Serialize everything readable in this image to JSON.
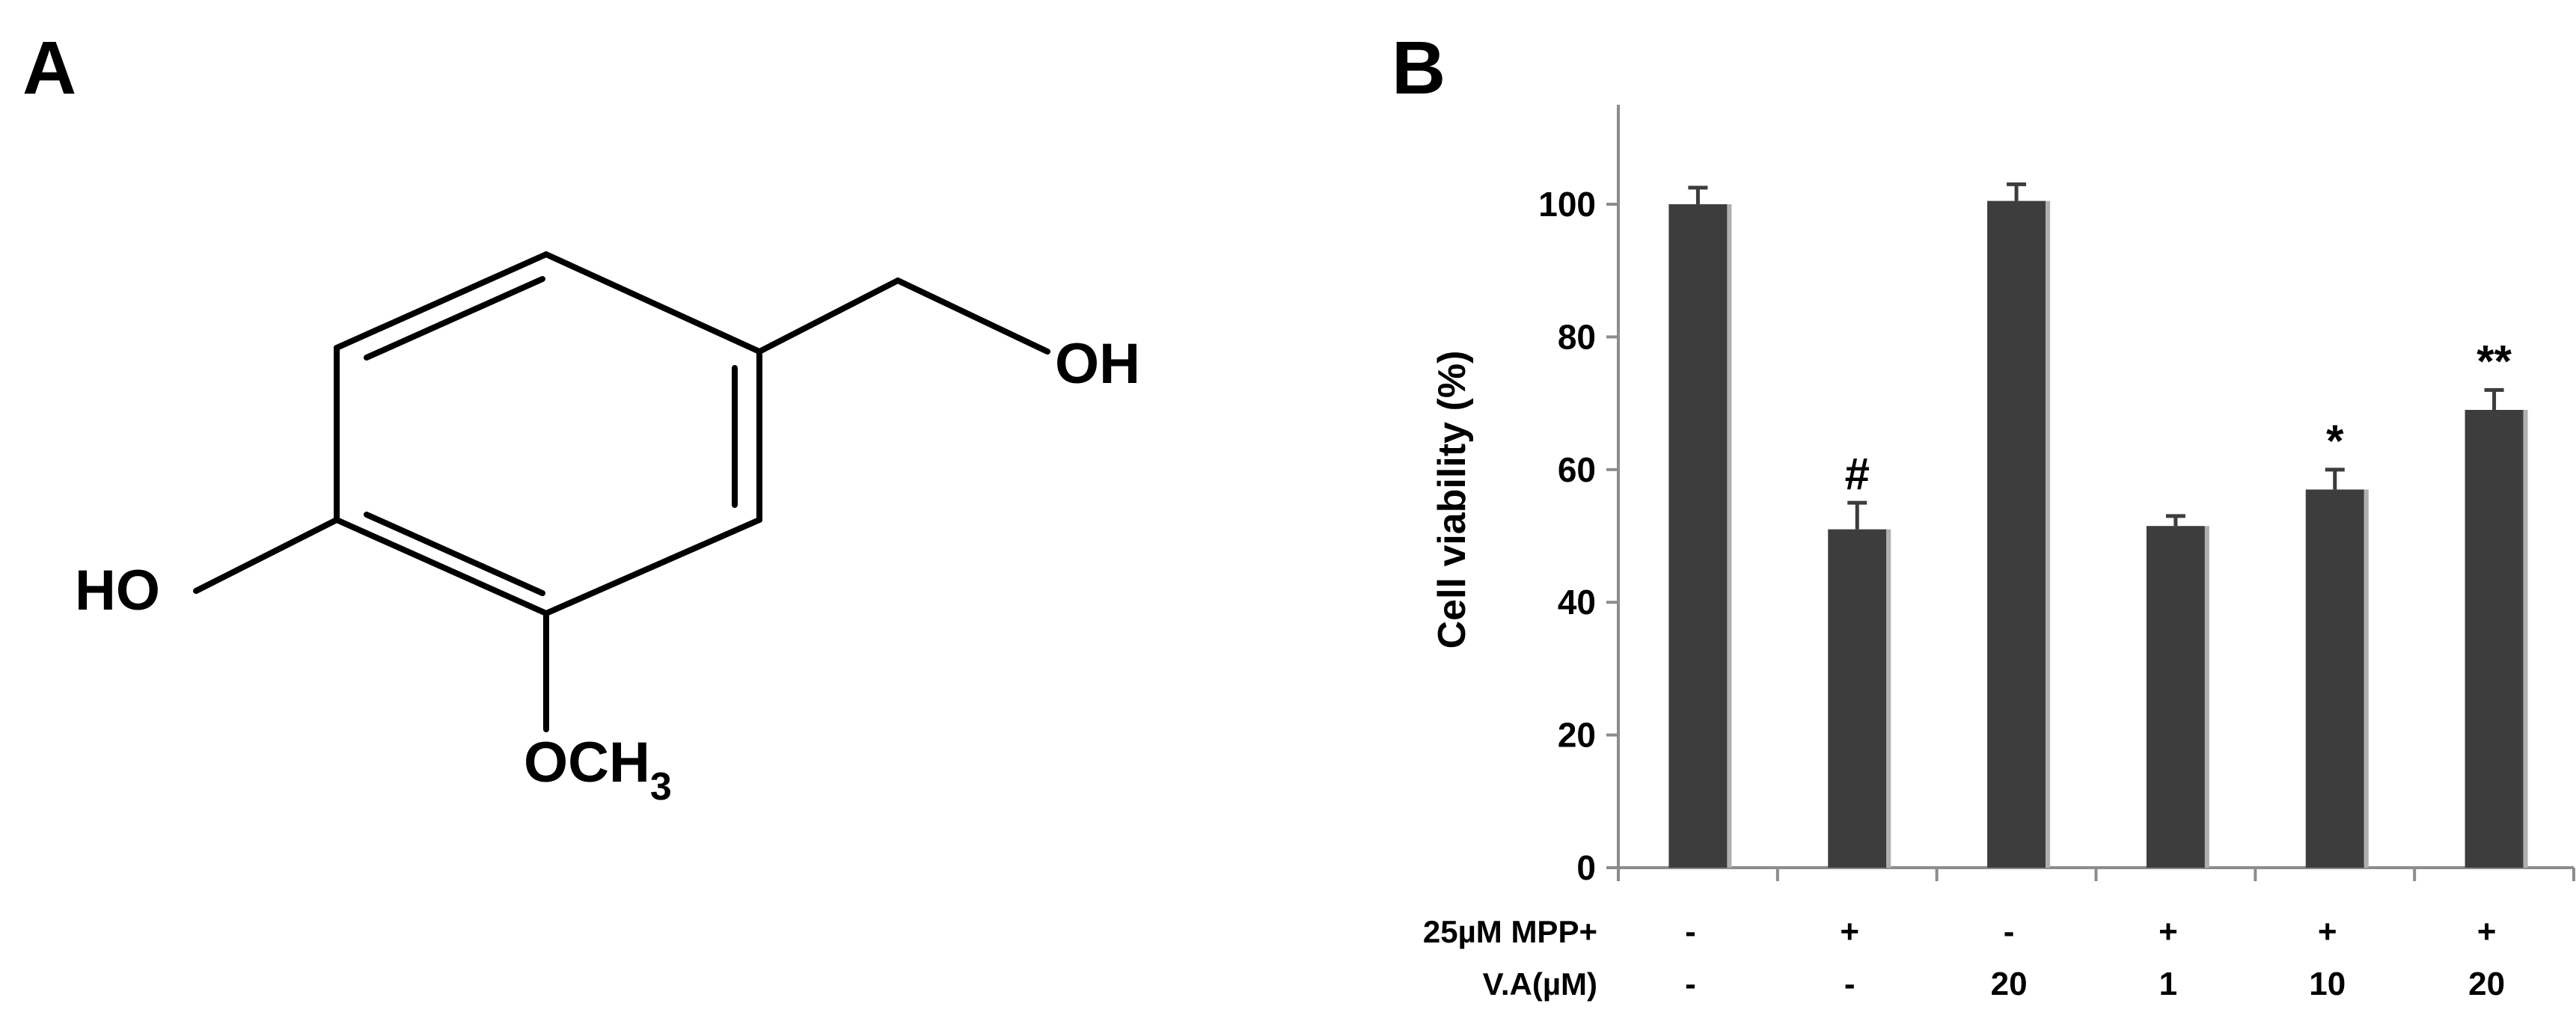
{
  "panels": {
    "a_label": "A",
    "b_label": "B"
  },
  "structure": {
    "oh_right": "OH",
    "ho_left": "HO",
    "methoxy_main": "OCH",
    "methoxy_sub": "3"
  },
  "chart_data": {
    "type": "bar",
    "title": "",
    "xlabel": "",
    "ylabel": "Cell viability (%)",
    "ylim": [
      0,
      115
    ],
    "yticks": [
      0,
      20,
      40,
      60,
      80,
      100
    ],
    "bar_color": "#3d3d3d",
    "categories": [
      "1",
      "2",
      "3",
      "4",
      "5",
      "6"
    ],
    "values": [
      100,
      51,
      100.5,
      51.5,
      57,
      69
    ],
    "errors": [
      2.5,
      4,
      2.5,
      1.5,
      3,
      3
    ],
    "annotations": [
      "",
      "#",
      "",
      "",
      "*",
      "**"
    ],
    "conditions": [
      {
        "label": "25µM MPP+",
        "values": [
          "-",
          "+",
          "-",
          "+",
          "+",
          "+"
        ]
      },
      {
        "label": "V.A(µM)",
        "values": [
          "-",
          "-",
          "20",
          "1",
          "10",
          "20"
        ]
      }
    ]
  }
}
